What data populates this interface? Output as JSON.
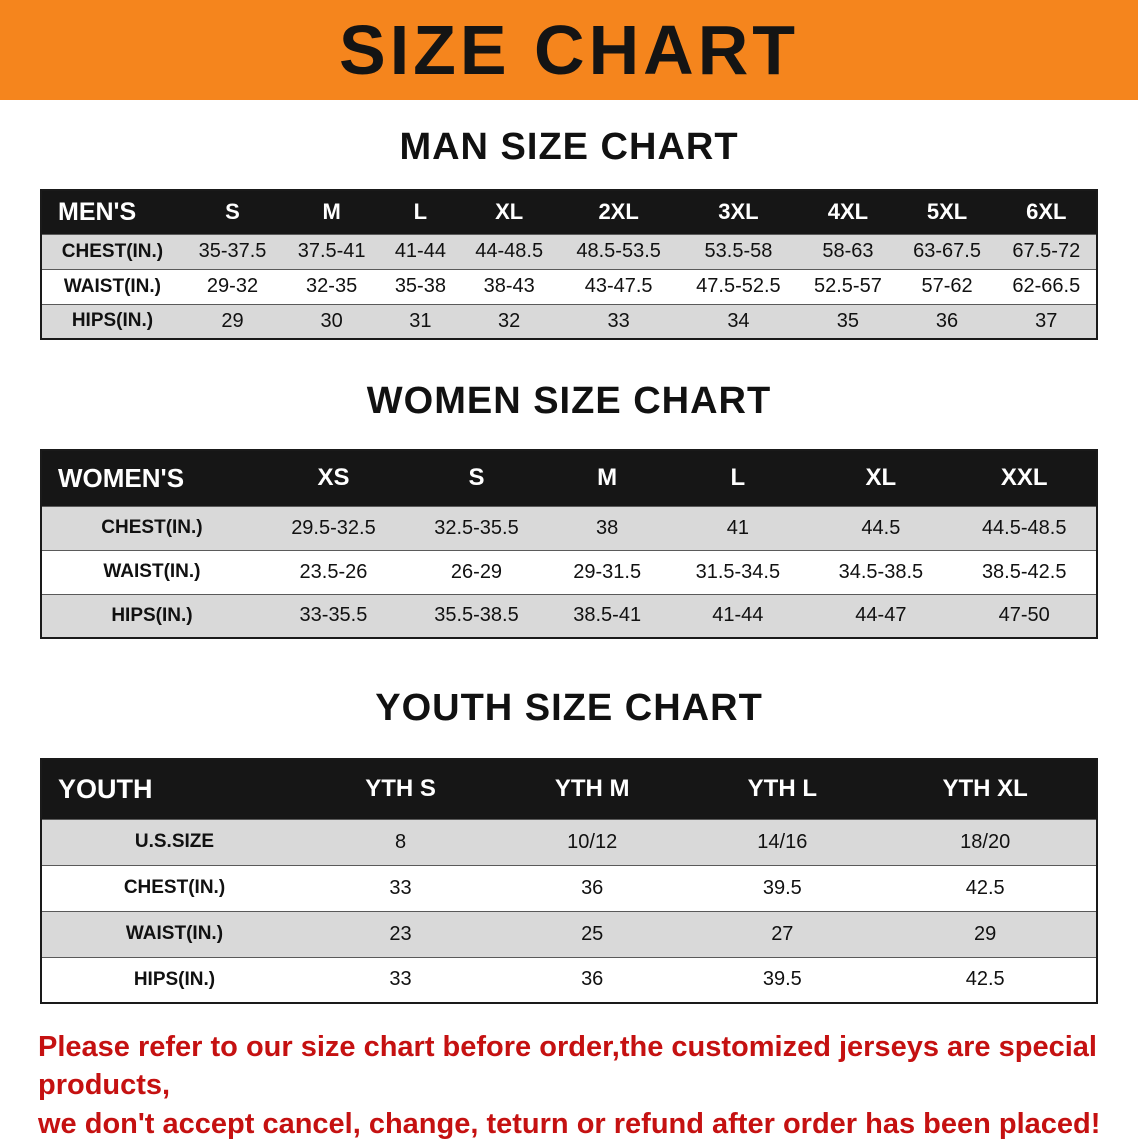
{
  "banner": {
    "title": "SIZE CHART",
    "bg_color": "#f5851d",
    "text_color": "#141414"
  },
  "sections": [
    {
      "heading": "MAN SIZE CHART",
      "table": {
        "header": [
          "MEN'S",
          "S",
          "M",
          "L",
          "XL",
          "2XL",
          "3XL",
          "4XL",
          "5XL",
          "6XL"
        ],
        "rows": [
          [
            "CHEST(IN.)",
            "35-37.5",
            "37.5-41",
            "41-44",
            "44-48.5",
            "48.5-53.5",
            "53.5-58",
            "58-63",
            "63-67.5",
            "67.5-72"
          ],
          [
            "WAIST(IN.)",
            "29-32",
            "32-35",
            "35-38",
            "38-43",
            "43-47.5",
            "47.5-52.5",
            "52.5-57",
            "57-62",
            "62-66.5"
          ],
          [
            "HIPS(IN.)",
            "29",
            "30",
            "31",
            "32",
            "33",
            "34",
            "35",
            "36",
            "37"
          ]
        ]
      }
    },
    {
      "heading": "WOMEN SIZE CHART",
      "table": {
        "header": [
          "WOMEN'S",
          "XS",
          "S",
          "M",
          "L",
          "XL",
          "XXL"
        ],
        "rows": [
          [
            "CHEST(IN.)",
            "29.5-32.5",
            "32.5-35.5",
            "38",
            "41",
            "44.5",
            "44.5-48.5"
          ],
          [
            "WAIST(IN.)",
            "23.5-26",
            "26-29",
            "29-31.5",
            "31.5-34.5",
            "34.5-38.5",
            "38.5-42.5"
          ],
          [
            "HIPS(IN.)",
            "33-35.5",
            "35.5-38.5",
            "38.5-41",
            "41-44",
            "44-47",
            "47-50"
          ]
        ]
      }
    },
    {
      "heading": "YOUTH SIZE CHART",
      "table": {
        "header": [
          "YOUTH",
          "YTH S",
          "YTH M",
          "YTH L",
          "YTH XL"
        ],
        "rows": [
          [
            "U.S.SIZE",
            "8",
            "10/12",
            "14/16",
            "18/20"
          ],
          [
            "CHEST(IN.)",
            "33",
            "36",
            "39.5",
            "42.5"
          ],
          [
            "WAIST(IN.)",
            "23",
            "25",
            "27",
            "29"
          ],
          [
            "HIPS(IN.)",
            "33",
            "36",
            "39.5",
            "42.5"
          ]
        ]
      }
    }
  ],
  "disclaimer": {
    "line1": "Please refer to our size chart before order,the customized jerseys are special products,",
    "line2": "we don't accept cancel, change, teturn or refund after order has been placed!",
    "color": "#c51111"
  },
  "colors": {
    "header_row_bg": "#161616",
    "stripe_gray": "#d9d9d9"
  }
}
